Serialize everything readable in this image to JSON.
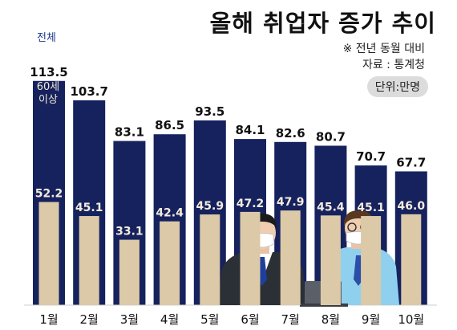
{
  "title": "올해 취업자 증가 추이",
  "note_compare": "※ 전년 동월 대비",
  "source": "자료 : 통계청",
  "unit": "단위:만명",
  "colors": {
    "total": "#16225e",
    "senior": "#dcc9a8",
    "title": "#111111"
  },
  "chart_data": {
    "type": "bar",
    "title": "올해 취업자 증가 추이",
    "categories": [
      "1월",
      "2월",
      "3월",
      "4월",
      "5월",
      "6월",
      "7월",
      "8월",
      "9월",
      "10월"
    ],
    "series": [
      {
        "name": "전체",
        "values": [
          113.5,
          103.7,
          83.1,
          86.5,
          93.5,
          84.1,
          82.6,
          80.7,
          70.7,
          67.7
        ]
      },
      {
        "name": "60세 이상",
        "values": [
          52.2,
          45.1,
          33.1,
          42.4,
          45.9,
          47.2,
          47.9,
          45.4,
          45.1,
          46.0
        ]
      }
    ],
    "ylim": [
      0,
      120
    ],
    "grid": false,
    "legend": "labels on first bar"
  },
  "illustration": {
    "figures": [
      "businessman-figure",
      "office-worker-with-laptop"
    ]
  }
}
